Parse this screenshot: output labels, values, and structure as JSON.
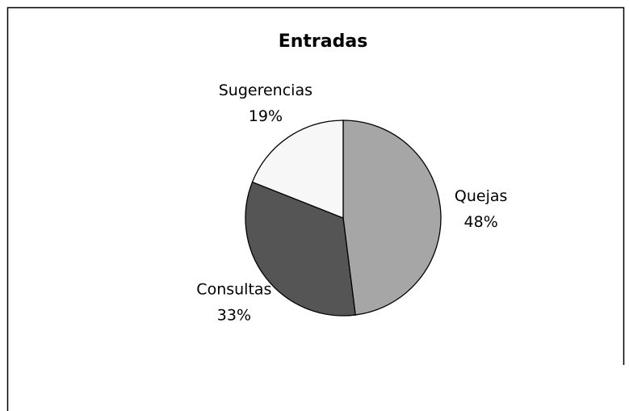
{
  "chart_data": {
    "type": "pie",
    "title": "Entradas",
    "categories": [
      "Quejas",
      "Consultas",
      "Sugerencias"
    ],
    "values": [
      48,
      33,
      19
    ],
    "value_labels": [
      "48%",
      "33%",
      "19%"
    ],
    "colors": [
      "#a6a6a6",
      "#555555",
      "#f7f7f7"
    ]
  }
}
